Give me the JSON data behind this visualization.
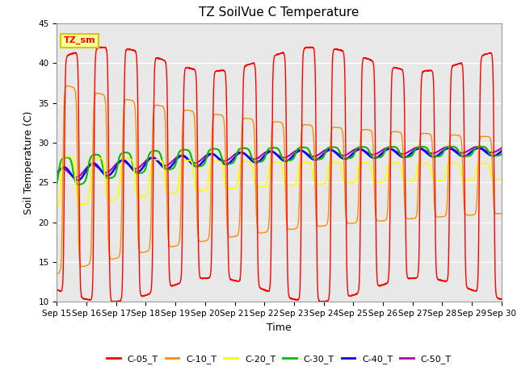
{
  "title": "TZ SoilVue C Temperature",
  "xlabel": "Time",
  "ylabel": "Soil Temperature (C)",
  "ylim": [
    10,
    45
  ],
  "xlim": [
    0,
    15
  ],
  "xtick_labels": [
    "Sep 15",
    "Sep 16",
    "Sep 17",
    "Sep 18",
    "Sep 19",
    "Sep 20",
    "Sep 21",
    "Sep 22",
    "Sep 23",
    "Sep 24",
    "Sep 25",
    "Sep 26",
    "Sep 27",
    "Sep 28",
    "Sep 29",
    "Sep 30"
  ],
  "ytick_values": [
    10,
    15,
    20,
    25,
    30,
    35,
    40,
    45
  ],
  "series_colors": {
    "C-05_T": "#FF0000",
    "C-10_T": "#FF8C00",
    "C-20_T": "#FFFF00",
    "C-30_T": "#00BB00",
    "C-40_T": "#0000FF",
    "C-50_T": "#AA00AA"
  },
  "legend_label": "TZ_sm",
  "legend_box_color": "#FFFF99",
  "legend_box_edge": "#CCCC00",
  "plot_bg_color": "#E8E8E8",
  "grid_color": "#FFFFFF",
  "title_fontsize": 11,
  "label_fontsize": 9,
  "tick_fontsize": 7.5
}
